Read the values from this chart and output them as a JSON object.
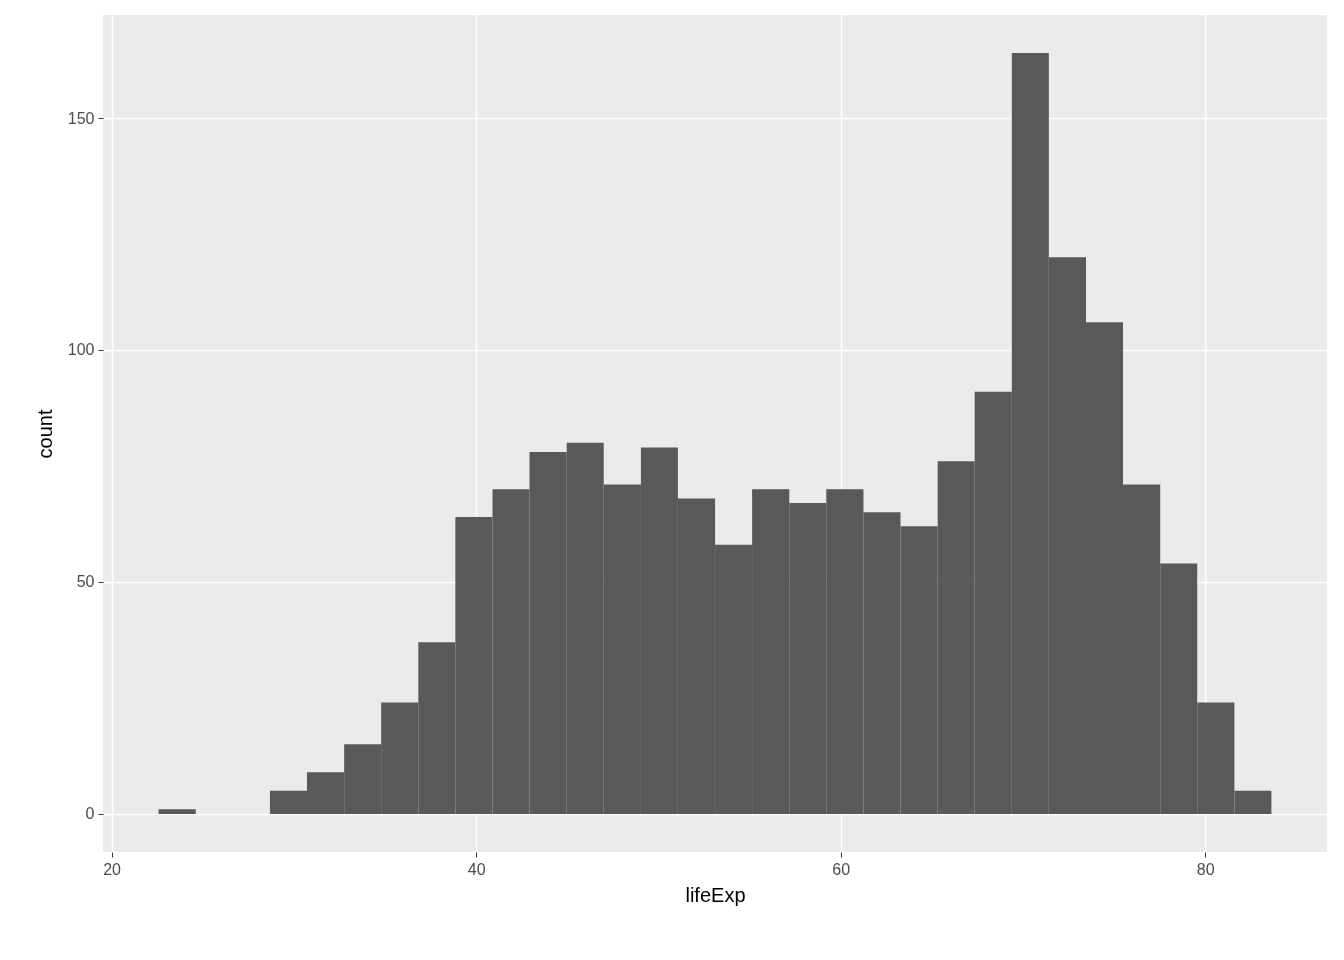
{
  "chart_data": {
    "type": "histogram",
    "xlabel": "lifeExp",
    "ylabel": "count",
    "bins": [
      22.58,
      24.62,
      26.65,
      28.69,
      30.72,
      32.76,
      34.79,
      36.83,
      38.86,
      40.9,
      42.93,
      44.97,
      47.0,
      49.04,
      51.07,
      53.11,
      55.14,
      57.18,
      59.21,
      61.25,
      63.28,
      65.32,
      67.35,
      69.39,
      71.42,
      73.46,
      75.49,
      77.53,
      79.56,
      81.6,
      83.63
    ],
    "values": [
      1,
      0,
      0,
      5,
      9,
      15,
      24,
      37,
      64,
      70,
      78,
      80,
      71,
      79,
      68,
      58,
      70,
      67,
      70,
      65,
      62,
      76,
      91,
      164,
      120,
      106,
      71,
      54,
      24,
      5
    ],
    "color": "#595959",
    "xlim": [
      19.53,
      86.68
    ],
    "xticks": [
      20,
      40,
      60,
      80
    ],
    "ylim": [
      -8.2,
      172.2
    ],
    "yticks": [
      0,
      50,
      100,
      150
    ],
    "grid": true
  }
}
